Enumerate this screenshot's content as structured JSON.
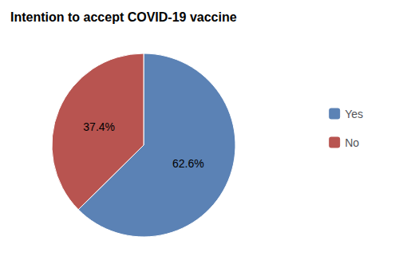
{
  "chart_data": {
    "type": "pie",
    "title": "Intention to accept COVID-19 vaccine",
    "categories": [
      "Yes",
      "No"
    ],
    "values": [
      62.6,
      37.4
    ],
    "value_labels": [
      "62.6%",
      "37.4%"
    ],
    "colors": [
      "#5b82b5",
      "#b85450"
    ],
    "data_labels": true,
    "legend": "right"
  }
}
